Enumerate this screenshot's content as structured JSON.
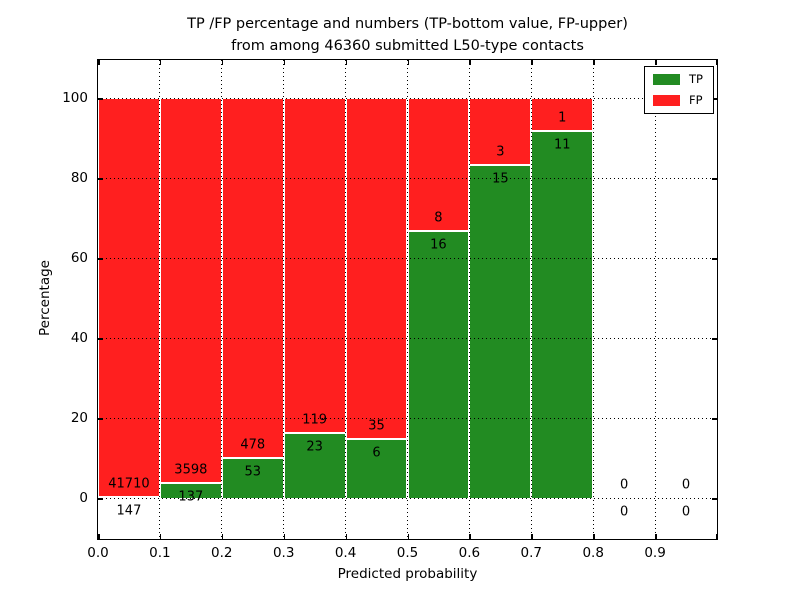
{
  "title": {
    "line1": "TP /FP percentage and numbers (TP-bottom value, FP-upper)",
    "line2": "from among 46360 submitted L50-type contacts"
  },
  "colors": {
    "tp": "#228b22",
    "fp": "#ff1f1f",
    "grid": "#000000",
    "text": "#000000",
    "background": "#ffffff"
  },
  "chart_data": {
    "type": "bar",
    "stacked": true,
    "normalized_to_percent": true,
    "title": "TP /FP percentage and numbers (TP-bottom value, FP-upper) from among 46360 submitted L50-type contacts",
    "total_contacts": 46360,
    "xlabel": "Predicted probability",
    "ylabel": "Percentage",
    "xlim": [
      0.0,
      1.0
    ],
    "ylim": [
      -10,
      110
    ],
    "x_tick_labels": [
      "0.0",
      "0.1",
      "0.2",
      "0.3",
      "0.4",
      "0.5",
      "0.6",
      "0.7",
      "0.8",
      "0.9"
    ],
    "y_tick_values": [
      0,
      20,
      40,
      60,
      80,
      100
    ],
    "grid": true,
    "legend": {
      "position": "upper right",
      "entries": [
        {
          "label": "TP",
          "color": "#228b22"
        },
        {
          "label": "FP",
          "color": "#ff1f1f"
        }
      ]
    },
    "bins": [
      {
        "range": [
          0.0,
          0.1
        ],
        "tp": 147,
        "fp": 41710,
        "tp_pct": 0.35,
        "fp_pct": 99.65
      },
      {
        "range": [
          0.1,
          0.2
        ],
        "tp": 137,
        "fp": 3598,
        "tp_pct": 3.67,
        "fp_pct": 96.33
      },
      {
        "range": [
          0.2,
          0.3
        ],
        "tp": 53,
        "fp": 478,
        "tp_pct": 9.98,
        "fp_pct": 90.02
      },
      {
        "range": [
          0.3,
          0.4
        ],
        "tp": 23,
        "fp": 119,
        "tp_pct": 16.2,
        "fp_pct": 83.8
      },
      {
        "range": [
          0.4,
          0.5
        ],
        "tp": 6,
        "fp": 35,
        "tp_pct": 14.63,
        "fp_pct": 85.37
      },
      {
        "range": [
          0.5,
          0.6
        ],
        "tp": 16,
        "fp": 8,
        "tp_pct": 66.67,
        "fp_pct": 33.33
      },
      {
        "range": [
          0.6,
          0.7
        ],
        "tp": 15,
        "fp": 3,
        "tp_pct": 83.33,
        "fp_pct": 16.67
      },
      {
        "range": [
          0.7,
          0.8
        ],
        "tp": 11,
        "fp": 1,
        "tp_pct": 91.67,
        "fp_pct": 8.33
      },
      {
        "range": [
          0.8,
          0.9
        ],
        "tp": 0,
        "fp": 0,
        "tp_pct": 0,
        "fp_pct": 0
      },
      {
        "range": [
          0.9,
          1.0
        ],
        "tp": 0,
        "fp": 0,
        "tp_pct": 0,
        "fp_pct": 0
      }
    ]
  }
}
